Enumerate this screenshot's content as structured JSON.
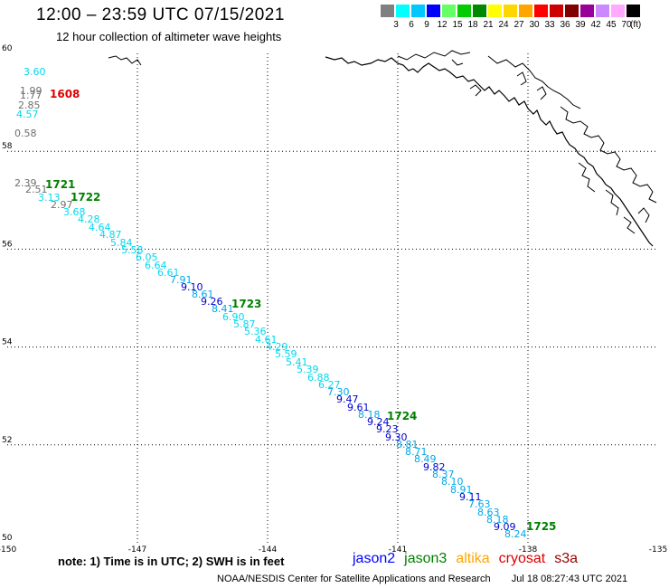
{
  "header": {
    "title": "12:00 – 23:59 UTC 07/15/2021",
    "subtitle": "12 hour collection of altimeter wave heights"
  },
  "color_scale": {
    "swatches": [
      "#808080",
      "#00ffff",
      "#00c8ff",
      "#0000ff",
      "#66ff66",
      "#00cc00",
      "#008800",
      "#ffff00",
      "#ffd700",
      "#ffa500",
      "#ff0000",
      "#cc0000",
      "#800000",
      "#990099",
      "#cc88ff",
      "#ffaaff",
      "#000000"
    ],
    "ticks": [
      "3",
      "6",
      "9",
      "12",
      "15",
      "18",
      "21",
      "24",
      "27",
      "30",
      "33",
      "36",
      "39",
      "42",
      "45",
      "70"
    ],
    "unit": "(ft)"
  },
  "map": {
    "lon_range": [
      -150,
      -135
    ],
    "lat_range": [
      50,
      60
    ],
    "x_ticks": [
      "-150",
      "-147",
      "-144",
      "-141",
      "-138",
      "-135"
    ],
    "y_ticks": [
      "60",
      "58",
      "56",
      "54",
      "52",
      "50"
    ],
    "grid": true,
    "coastline_color": "#000000"
  },
  "readings": [
    {
      "v": "3.60",
      "c": "#00d8f0"
    },
    {
      "v": "1.99",
      "c": "#707070"
    },
    {
      "v": "1.77",
      "c": "#707070"
    },
    {
      "v": "2.85",
      "c": "#707070"
    },
    {
      "v": "4.57",
      "c": "#00d8f0"
    },
    {
      "v": "0.58",
      "c": "#707070"
    },
    {
      "v": "2.39",
      "c": "#707070"
    },
    {
      "v": "2.51",
      "c": "#707070"
    },
    {
      "v": "3.13",
      "c": "#00d8f0"
    },
    {
      "v": "2.97",
      "c": "#707070"
    },
    {
      "v": "3.68",
      "c": "#00d8f0"
    },
    {
      "v": "4.28",
      "c": "#00d8f0"
    },
    {
      "v": "4.64",
      "c": "#00d8f0"
    },
    {
      "v": "4.87",
      "c": "#00d8f0"
    },
    {
      "v": "5.84",
      "c": "#00d8f0"
    },
    {
      "v": "5.58",
      "c": "#00d8f0"
    },
    {
      "v": "6.05",
      "c": "#00d8f0"
    },
    {
      "v": "6.64",
      "c": "#00d8f0"
    },
    {
      "v": "6.61",
      "c": "#00d8f0"
    },
    {
      "v": "7.91",
      "c": "#00a8e8"
    },
    {
      "v": "9.10",
      "c": "#0000cc"
    },
    {
      "v": "8.61",
      "c": "#00a8e8"
    },
    {
      "v": "9.26",
      "c": "#0000cc"
    },
    {
      "v": "8.41",
      "c": "#00a8e8"
    },
    {
      "v": "6.90",
      "c": "#00d8f0"
    },
    {
      "v": "5.87",
      "c": "#00d8f0"
    },
    {
      "v": "5.36",
      "c": "#00d8f0"
    },
    {
      "v": "4.61",
      "c": "#00d8f0"
    },
    {
      "v": "4.29",
      "c": "#00d8f0"
    },
    {
      "v": "5.59",
      "c": "#00d8f0"
    },
    {
      "v": "5.41",
      "c": "#00d8f0"
    },
    {
      "v": "5.39",
      "c": "#00d8f0"
    },
    {
      "v": "6.88",
      "c": "#00d8f0"
    },
    {
      "v": "6.27",
      "c": "#00d8f0"
    },
    {
      "v": "7.30",
      "c": "#00a8e8"
    },
    {
      "v": "9.47",
      "c": "#0000cc"
    },
    {
      "v": "9.61",
      "c": "#0000cc"
    },
    {
      "v": "8.18",
      "c": "#00a8e8"
    },
    {
      "v": "9.24",
      "c": "#0000cc"
    },
    {
      "v": "9.23",
      "c": "#0000cc"
    },
    {
      "v": "9.30",
      "c": "#0000cc"
    },
    {
      "v": "8.81",
      "c": "#00a8e8"
    },
    {
      "v": "8.71",
      "c": "#00a8e8"
    },
    {
      "v": "8.49",
      "c": "#00a8e8"
    },
    {
      "v": "9.82",
      "c": "#0000cc"
    },
    {
      "v": "8.37",
      "c": "#00a8e8"
    },
    {
      "v": "8.10",
      "c": "#00a8e8"
    },
    {
      "v": "8.91",
      "c": "#00a8e8"
    },
    {
      "v": "9.11",
      "c": "#0000cc"
    },
    {
      "v": "7.63",
      "c": "#00a8e8"
    },
    {
      "v": "8.63",
      "c": "#00a8e8"
    },
    {
      "v": "8.18",
      "c": "#00a8e8"
    },
    {
      "v": "9.09",
      "c": "#0000cc"
    },
    {
      "v": "8.24",
      "c": "#00a8e8"
    }
  ],
  "pass_labels": [
    {
      "text": "1608",
      "c": "#dd0000"
    },
    {
      "text": "1721",
      "c": "#008000"
    },
    {
      "text": "1722",
      "c": "#008000"
    },
    {
      "text": "1723",
      "c": "#008000"
    },
    {
      "text": "1724",
      "c": "#008000"
    },
    {
      "text": "1725",
      "c": "#008000"
    }
  ],
  "footer": {
    "note": "note:  1) Time is in UTC;  2) SWH is in feet",
    "satellites": [
      {
        "name": "jason2",
        "color": "#0000ff"
      },
      {
        "name": "jason3",
        "color": "#008000"
      },
      {
        "name": "altika",
        "color": "#ffa500"
      },
      {
        "name": "cryosat",
        "color": "#dd0000"
      },
      {
        "name": "s3a",
        "color": "#990000"
      }
    ],
    "credit": "NOAA/NESDIS Center for Satellite Applications and Research",
    "timestamp": "Jul 18 08:27:43 UTC 2021"
  }
}
